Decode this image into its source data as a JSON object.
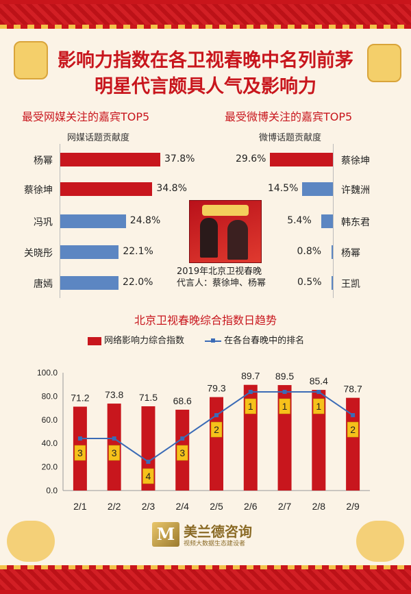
{
  "title_line1": "影响力指数在各卫视春晚中名列前茅",
  "title_line2": "明星代言颇具人气及影响力",
  "left_panel": {
    "section_title": "最受网媒关注的嘉宾TOP5",
    "axis_title": "网媒话题贡献度",
    "items": [
      {
        "name": "杨幂",
        "value": 37.8,
        "label": "37.8%"
      },
      {
        "name": "蔡徐坤",
        "value": 34.8,
        "label": "34.8%"
      },
      {
        "name": "冯巩",
        "value": 24.8,
        "label": "24.8%"
      },
      {
        "name": "关晓彤",
        "value": 22.1,
        "label": "22.1%"
      },
      {
        "name": "唐嫣",
        "value": 22.0,
        "label": "22.0%"
      }
    ]
  },
  "right_panel": {
    "section_title": "最受微博关注的嘉宾TOP5",
    "axis_title": "微博话题贡献度",
    "items": [
      {
        "name": "蔡徐坤",
        "value": 29.6,
        "label": "29.6%"
      },
      {
        "name": "许魏洲",
        "value": 14.5,
        "label": "14.5%"
      },
      {
        "name": "韩东君",
        "value": 5.4,
        "label": "5.4%"
      },
      {
        "name": "杨幂",
        "value": 0.8,
        "label": "0.8%"
      },
      {
        "name": "王凯",
        "value": 0.5,
        "label": "0.5%"
      }
    ]
  },
  "caption": {
    "line1": "2019年北京卫视春晚",
    "line2": "代言人：蔡徐坤、杨幂"
  },
  "trend_title": "北京卫视春晚综合指数日趋势",
  "legend": {
    "bar_label": "网络影响力综合指数",
    "line_label": "在各台春晚中的排名"
  },
  "chart_data": {
    "type": "bar",
    "categories": [
      "2/1",
      "2/2",
      "2/3",
      "2/4",
      "2/5",
      "2/6",
      "2/7",
      "2/8",
      "2/9"
    ],
    "series": [
      {
        "name": "网络影响力综合指数",
        "values": [
          71.2,
          73.8,
          71.5,
          68.6,
          79.3,
          89.7,
          89.5,
          85.4,
          78.7
        ]
      },
      {
        "name": "在各台春晚中的排名",
        "type": "line",
        "values": [
          3,
          3,
          4,
          3,
          2,
          1,
          1,
          1,
          2
        ]
      }
    ],
    "y_ticks": [
      "0.0",
      "20.0",
      "40.0",
      "60.0",
      "80.0",
      "100.0"
    ],
    "ylim": [
      0,
      100
    ],
    "colors": {
      "bar": "#c8161d",
      "line": "#3b6bb6",
      "rank_box": "#f6c11b"
    }
  },
  "logo": {
    "mark": "M",
    "name": "美兰德咨询",
    "sub": "视频大数据生态建设者"
  }
}
